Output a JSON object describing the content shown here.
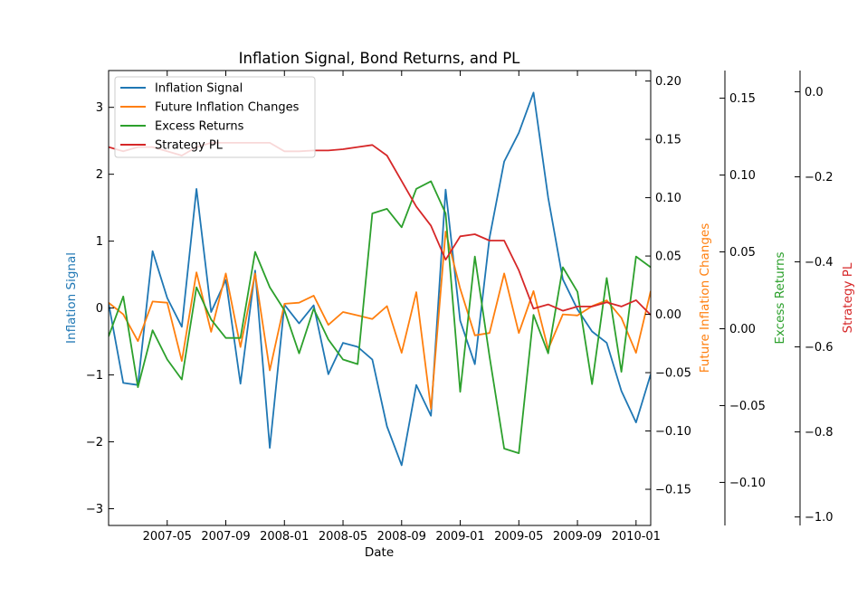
{
  "chart_data": {
    "type": "line",
    "title": "Inflation Signal, Bond Returns, and PL",
    "xlabel": "Date",
    "x": [
      "2007-01",
      "2007-02",
      "2007-03",
      "2007-04",
      "2007-05",
      "2007-06",
      "2007-07",
      "2007-08",
      "2007-09",
      "2007-10",
      "2007-11",
      "2007-12",
      "2008-01",
      "2008-02",
      "2008-03",
      "2008-04",
      "2008-05",
      "2008-06",
      "2008-07",
      "2008-08",
      "2008-09",
      "2008-10",
      "2008-11",
      "2008-12",
      "2009-01",
      "2009-02",
      "2009-03",
      "2009-04",
      "2009-05",
      "2009-06",
      "2009-07",
      "2009-08",
      "2009-09",
      "2009-10",
      "2009-11",
      "2009-12",
      "2010-01",
      "2010-02"
    ],
    "xlim": [
      "2007-01",
      "2010-02"
    ],
    "x_ticks": [
      "2007-05",
      "2007-09",
      "2008-01",
      "2008-05",
      "2008-09",
      "2009-01",
      "2009-05",
      "2009-09",
      "2010-01"
    ],
    "grid": false,
    "legend_position": "top-left",
    "axes": [
      {
        "id": "inflation",
        "label": "Inflation Signal",
        "side": "left",
        "color": "#1f77b4",
        "ylim": [
          -3.25,
          3.55
        ],
        "ticks": [
          "−3",
          "−2",
          "−1",
          "0",
          "1",
          "2",
          "3"
        ],
        "tick_values": [
          -3,
          -2,
          -1,
          0,
          1,
          2,
          3
        ]
      },
      {
        "id": "future",
        "label": "Future Inflation Changes",
        "side": "right",
        "color": "#ff7f0e",
        "ylim": [
          -0.181,
          0.209
        ],
        "ticks": [
          "−0.15",
          "−0.10",
          "−0.05",
          "0.00",
          "0.05",
          "0.10",
          "0.15",
          "0.20"
        ],
        "tick_values": [
          -0.15,
          -0.1,
          -0.05,
          0.0,
          0.05,
          0.1,
          0.15,
          0.2
        ]
      },
      {
        "id": "excess",
        "label": "Excess Returns",
        "side": "right",
        "color": "#2ca02c",
        "ylim": [
          -0.128,
          0.168
        ],
        "ticks": [
          "−0.10",
          "−0.05",
          "0.00",
          "0.05",
          "0.10",
          "0.15"
        ],
        "tick_values": [
          -0.1,
          -0.05,
          0.0,
          0.05,
          0.1,
          0.15
        ]
      },
      {
        "id": "pl",
        "label": "Strategy PL",
        "side": "right",
        "color": "#d62728",
        "ylim": [
          -1.02,
          0.05
        ],
        "ticks": [
          "−1.0",
          "−0.8",
          "−0.6",
          "−0.4",
          "−0.2",
          "0.0"
        ],
        "tick_values": [
          -1.0,
          -0.8,
          -0.6,
          -0.4,
          -0.2,
          0.0
        ]
      }
    ],
    "series": [
      {
        "name": "Inflation Signal",
        "axis": "inflation",
        "color": "#1f77b4",
        "values": [
          0.07,
          -1.12,
          -1.15,
          0.85,
          0.15,
          -0.28,
          1.78,
          -0.06,
          0.42,
          -1.13,
          0.56,
          -2.09,
          0.05,
          -0.23,
          0.04,
          -0.99,
          -0.52,
          -0.58,
          -0.77,
          -1.77,
          -2.35,
          -1.15,
          -1.61,
          1.77,
          -0.19,
          -0.84,
          1.05,
          2.19,
          2.62,
          3.22,
          1.65,
          0.43,
          -0.02,
          -0.35,
          -0.52,
          -1.24,
          -1.71,
          -0.99
        ]
      },
      {
        "name": "Future Inflation Changes",
        "axis": "future",
        "color": "#ff7f0e",
        "values": [
          0.01,
          0.0,
          -0.023,
          0.011,
          0.01,
          -0.04,
          0.036,
          -0.015,
          0.035,
          -0.028,
          0.035,
          -0.048,
          0.009,
          0.01,
          0.016,
          -0.009,
          0.002,
          -0.001,
          -0.004,
          0.007,
          -0.033,
          0.019,
          -0.081,
          0.071,
          0.022,
          -0.018,
          -0.016,
          0.035,
          -0.016,
          0.02,
          -0.03,
          0.0,
          -0.001,
          0.007,
          0.012,
          -0.003,
          -0.033,
          0.02
        ]
      },
      {
        "name": "Excess Returns",
        "axis": "excess",
        "color": "#2ca02c",
        "values": [
          -0.005,
          0.021,
          -0.038,
          -0.001,
          -0.02,
          -0.033,
          0.027,
          0.006,
          -0.006,
          -0.006,
          0.05,
          0.027,
          0.012,
          -0.016,
          0.013,
          -0.007,
          -0.02,
          -0.023,
          0.075,
          0.078,
          0.066,
          0.091,
          0.096,
          0.075,
          -0.041,
          0.047,
          -0.018,
          -0.078,
          -0.081,
          0.009,
          -0.016,
          0.04,
          0.024,
          -0.036,
          0.033,
          -0.028,
          0.047,
          0.04
        ]
      },
      {
        "name": "Strategy PL",
        "axis": "pl",
        "color": "#d62728",
        "values": [
          -0.13,
          -0.14,
          -0.13,
          -0.13,
          -0.14,
          -0.15,
          -0.13,
          -0.12,
          -0.12,
          -0.12,
          -0.12,
          -0.12,
          -0.14,
          -0.14,
          -0.138,
          -0.138,
          -0.135,
          -0.13,
          -0.125,
          -0.15,
          -0.21,
          -0.27,
          -0.315,
          -0.395,
          -0.34,
          -0.335,
          -0.35,
          -0.35,
          -0.42,
          -0.51,
          -0.5,
          -0.515,
          -0.505,
          -0.505,
          -0.495,
          -0.505,
          -0.49,
          -0.525
        ]
      }
    ]
  }
}
